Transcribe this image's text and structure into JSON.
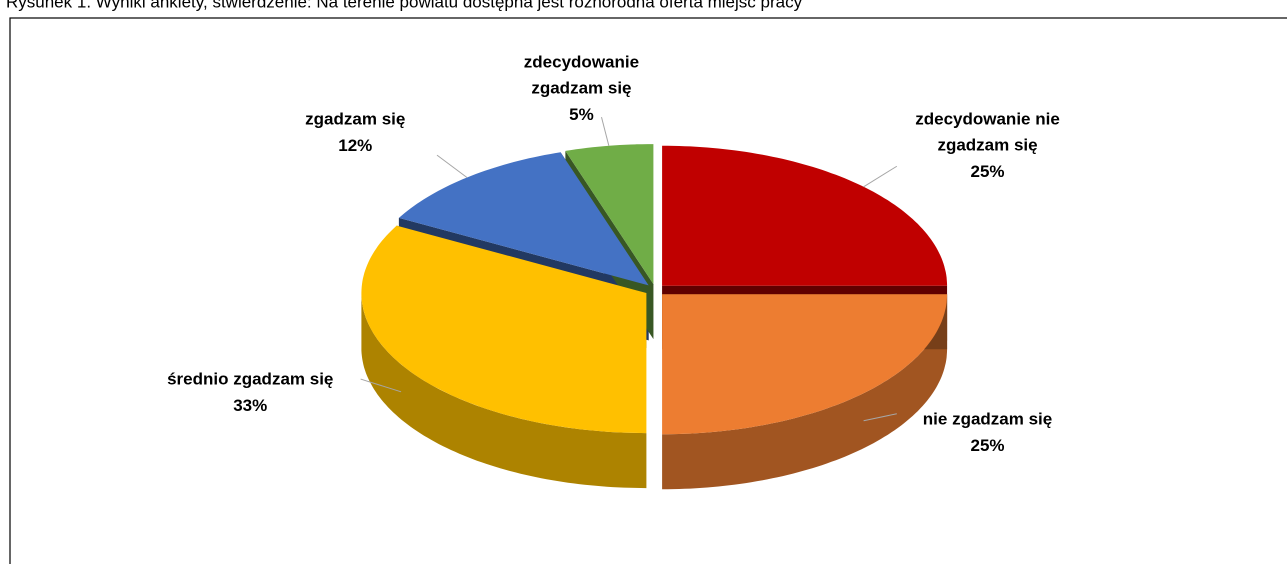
{
  "chart_data": {
    "type": "pie3d",
    "title": "Rysunek 1. Wyniki ankiety, stwierdzenie: Na terenie powiatu dostępna jest różnorodna oferta miejsc pracy",
    "categories": [
      "zdecydowanie nie zgadzam się",
      "nie zgadzam się",
      "średnio zgadzam się",
      "zgadzam się",
      "zdecydowanie zgadzam się"
    ],
    "values": [
      25,
      25,
      33,
      12,
      5
    ],
    "value_labels": [
      "25%",
      "25%",
      "33%",
      "12%",
      "5%"
    ],
    "colors": [
      "#c00000",
      "#ed7d31",
      "#ffc000",
      "#4472c4",
      "#70ad47"
    ]
  }
}
